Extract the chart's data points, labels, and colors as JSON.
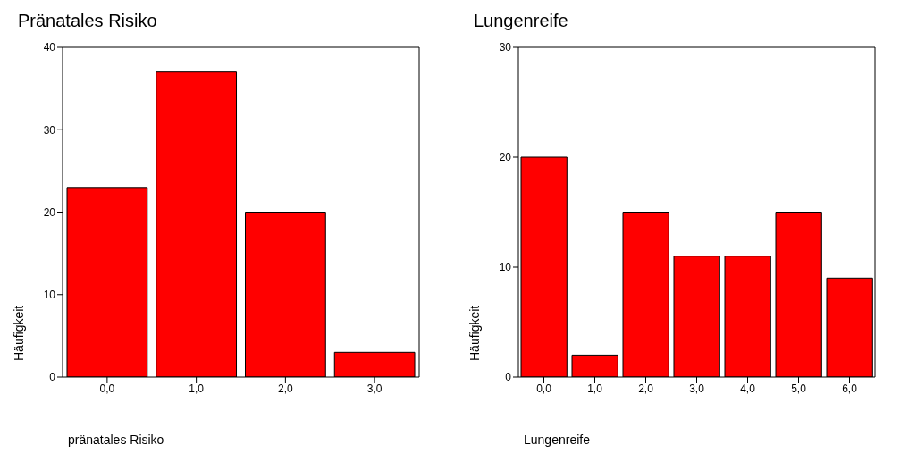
{
  "chart_data": [
    {
      "type": "histogram",
      "title": "Pränatales Risiko",
      "xlabel": "pränatales Risiko",
      "ylabel": "Häufigkeit",
      "bins": [
        -0.5,
        0.5,
        1.5,
        2.5,
        3.5
      ],
      "values": [
        23,
        37,
        20,
        3
      ],
      "color": "#ff0000",
      "xlim": [
        -0.5,
        3.5
      ],
      "xticks": [
        {
          "value": 0,
          "label": "0,0"
        },
        {
          "value": 1,
          "label": "1,0"
        },
        {
          "value": 2,
          "label": "2,0"
        },
        {
          "value": 3,
          "label": "3,0"
        }
      ],
      "ylim": [
        0,
        40
      ],
      "yticks": [
        0,
        10,
        20,
        30,
        40
      ],
      "grid": false,
      "legend": false
    },
    {
      "type": "histogram",
      "title": "Lungenreife",
      "xlabel": "Lungenreife",
      "ylabel": "Häufigkeit",
      "bins": [
        -0.5,
        0.5,
        1.5,
        2.5,
        3.5,
        4.5,
        5.5,
        6.5
      ],
      "values": [
        20,
        2,
        15,
        11,
        11,
        15,
        9
      ],
      "color": "#ff0000",
      "xlim": [
        -0.5,
        6.5
      ],
      "xticks": [
        {
          "value": 0,
          "label": "0,0"
        },
        {
          "value": 1,
          "label": "1,0"
        },
        {
          "value": 2,
          "label": "2,0"
        },
        {
          "value": 3,
          "label": "3,0"
        },
        {
          "value": 4,
          "label": "4,0"
        },
        {
          "value": 5,
          "label": "5,0"
        },
        {
          "value": 6,
          "label": "6,0"
        }
      ],
      "ylim": [
        0,
        30
      ],
      "yticks": [
        0,
        10,
        20,
        30
      ],
      "grid": false,
      "legend": false
    }
  ]
}
